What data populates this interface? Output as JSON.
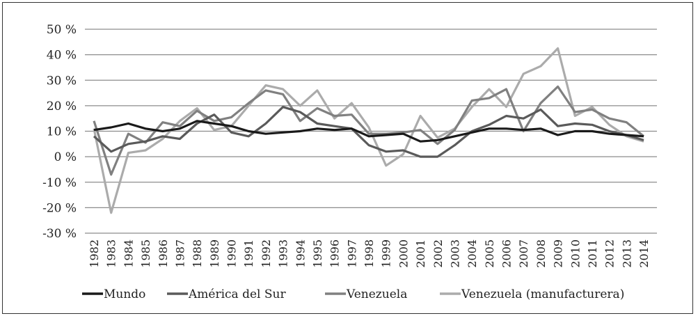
{
  "chart_data": {
    "type": "line",
    "title": "",
    "xlabel": "",
    "ylabel": "",
    "ylim": [
      -30,
      50
    ],
    "yticks": [
      "-30 %",
      "-20 %",
      "-10 %",
      "0 %",
      "10 %",
      "20 %",
      "30 %",
      "40 %",
      "50 %"
    ],
    "ytick_values": [
      -30,
      -20,
      -10,
      0,
      10,
      20,
      30,
      40,
      50
    ],
    "grid": "horizontal",
    "legend": "bottom",
    "x": [
      "1982",
      "1983",
      "1984",
      "1985",
      "1986",
      "1987",
      "1988",
      "1989",
      "1990",
      "1991",
      "1992",
      "1993",
      "1994",
      "1995",
      "1996",
      "1997",
      "1998",
      "1999",
      "2000",
      "2001",
      "2002",
      "2003",
      "2004",
      "2005",
      "2006",
      "2007",
      "2008",
      "2009",
      "2010",
      "2011",
      "2012",
      "2013",
      "2014"
    ],
    "series": [
      {
        "name": "Mundo",
        "color": "#1a1a1a",
        "values": [
          10.5,
          11.5,
          13,
          11,
          10,
          11,
          14,
          13,
          12,
          10,
          9,
          9.5,
          10,
          11,
          10.5,
          11,
          8,
          8.5,
          9,
          6,
          6.5,
          8,
          9.5,
          11,
          11,
          10.5,
          11,
          8.5,
          10,
          10,
          9,
          8.5,
          8
        ]
      },
      {
        "name": "América del Sur",
        "color": "#5a5a5a",
        "values": [
          8,
          2,
          5,
          6,
          8,
          7,
          13,
          16.5,
          9.5,
          8,
          13,
          19.5,
          17.5,
          13,
          12,
          11,
          4.5,
          2,
          2.5,
          0,
          0,
          4.5,
          10,
          12.5,
          16,
          15,
          18.5,
          12,
          13,
          12.5,
          10,
          8.5,
          6.5
        ]
      },
      {
        "name": "Venezuela",
        "color": "#808080",
        "values": [
          14,
          -7,
          9,
          5.5,
          13.5,
          12,
          18,
          14,
          15.5,
          21,
          26,
          24.5,
          14,
          19,
          16,
          16.5,
          9,
          9,
          9.5,
          10.5,
          5,
          10.5,
          22,
          23,
          26.5,
          10,
          21,
          27.5,
          17.5,
          18.5,
          15,
          13.5,
          8
        ]
      },
      {
        "name": "Venezuela (manufacturera)",
        "color": "#ababab",
        "values": [
          11,
          -22,
          1.5,
          2.5,
          7,
          14,
          19,
          10.5,
          12,
          20,
          28,
          26.5,
          20,
          26,
          15,
          21,
          11.5,
          -3.5,
          1,
          16,
          7.5,
          11,
          19.5,
          26.5,
          19.5,
          32.5,
          35.5,
          42.5,
          16,
          19.5,
          12.5,
          8,
          6
        ]
      }
    ]
  }
}
